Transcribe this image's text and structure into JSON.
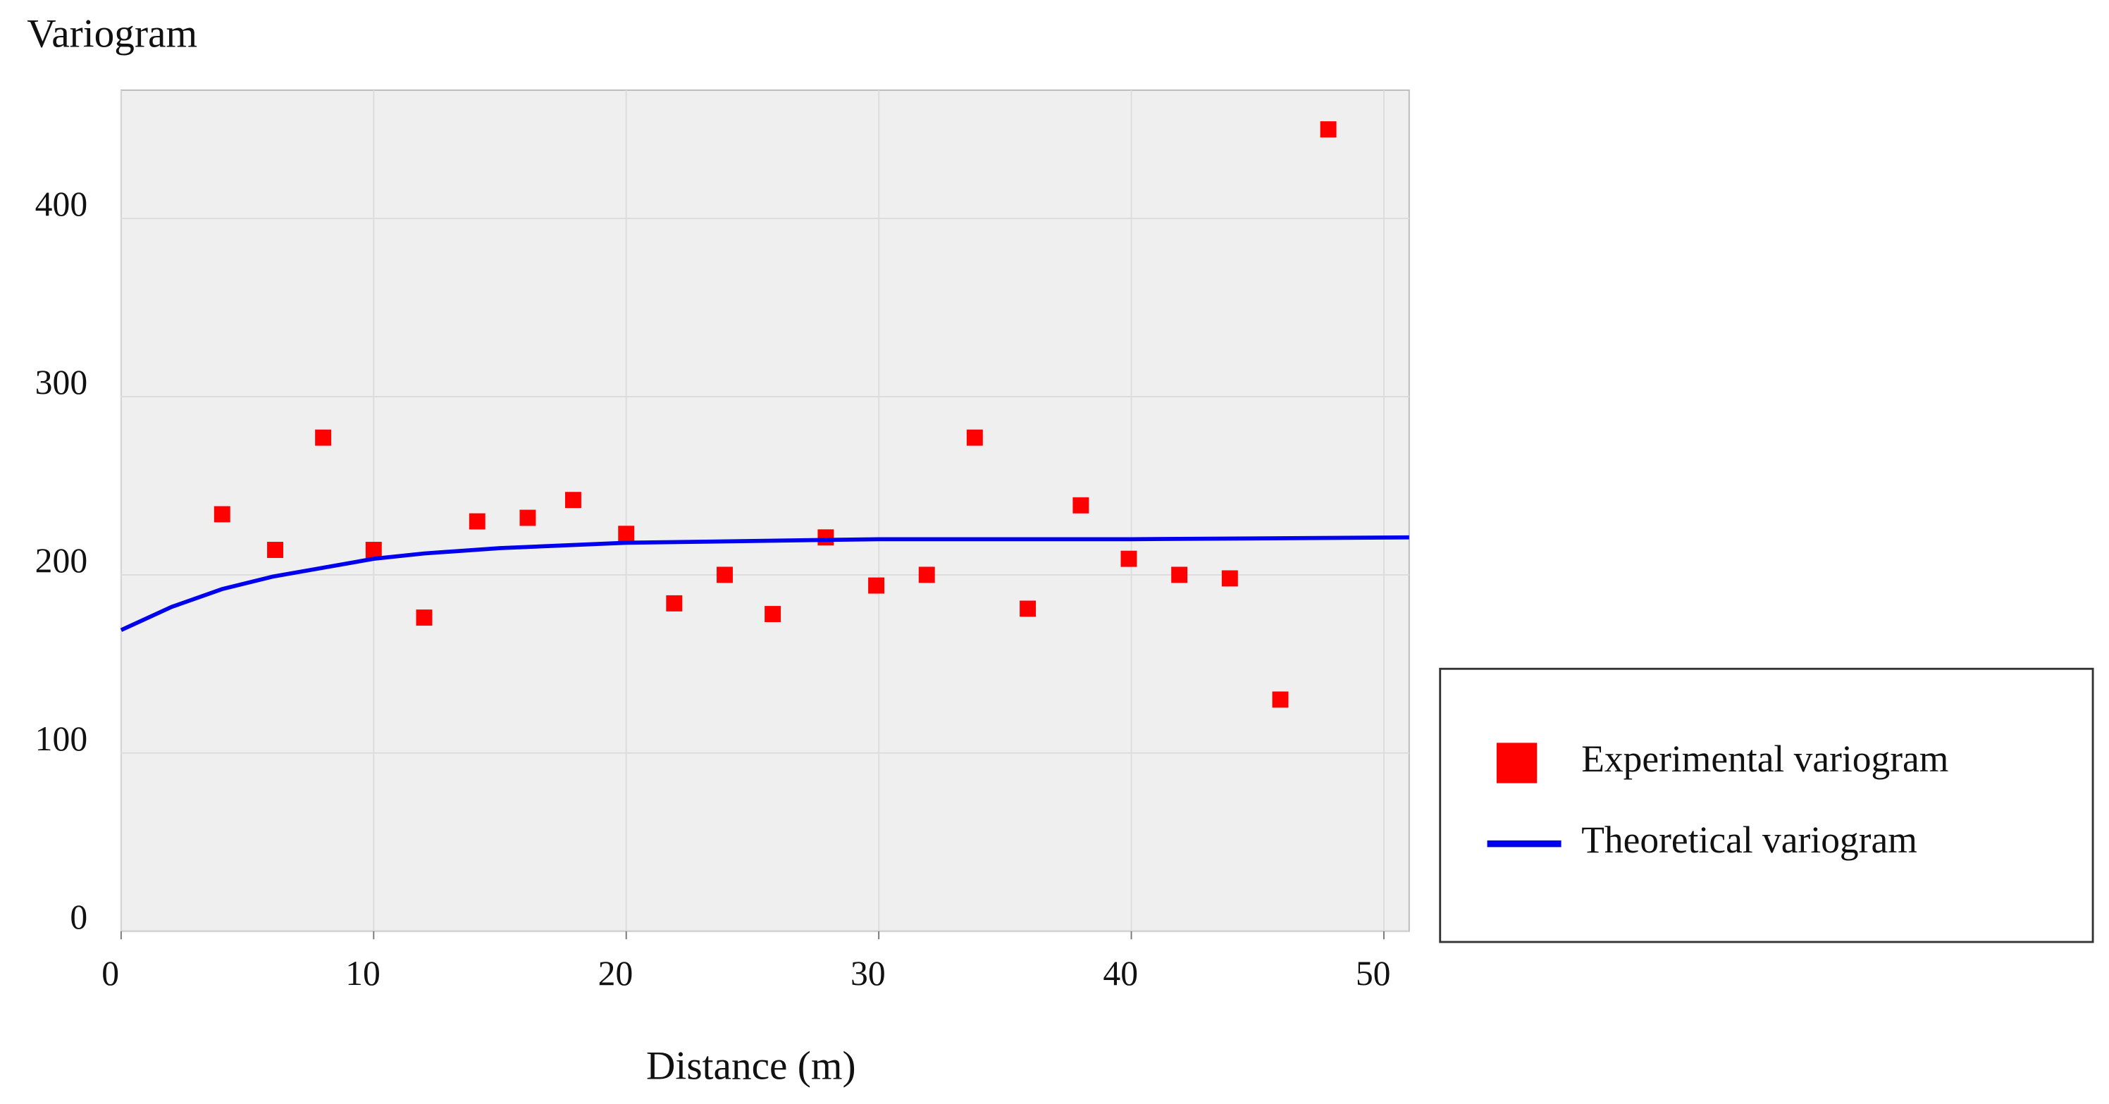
{
  "chart_data": {
    "type": "scatter",
    "title": "Variogram",
    "x_label": "Distance (m)",
    "xlim": [
      0,
      51
    ],
    "ylim": [
      0,
      472
    ],
    "xticks": [
      0,
      10,
      20,
      30,
      40,
      50
    ],
    "yticks": [
      0,
      100,
      200,
      300,
      400
    ],
    "grid": true,
    "legend": "right",
    "series": [
      {
        "name": "Experimental variogram",
        "type": "scatter",
        "color": "#ff0000",
        "x": [
          4.0,
          6.1,
          8.0,
          10.0,
          12.0,
          14.1,
          16.1,
          17.9,
          20.0,
          21.9,
          23.9,
          25.8,
          27.9,
          29.9,
          31.9,
          33.8,
          35.9,
          38.0,
          39.9,
          41.9,
          43.9,
          45.9,
          47.8
        ],
        "values": [
          234,
          214,
          277,
          214,
          176,
          230,
          232,
          242,
          223,
          184,
          200,
          178,
          221,
          194,
          200,
          277,
          181,
          239,
          209,
          200,
          198,
          130,
          450
        ]
      },
      {
        "name": "Theoretical variogram",
        "type": "line",
        "color": "#0000ee",
        "x": [
          0,
          2,
          4,
          6,
          8,
          10,
          12,
          15,
          20,
          25,
          30,
          40,
          51
        ],
        "values": [
          169,
          182,
          192,
          199,
          204,
          209,
          212,
          215,
          218,
          219,
          220,
          220,
          221
        ]
      }
    ]
  }
}
